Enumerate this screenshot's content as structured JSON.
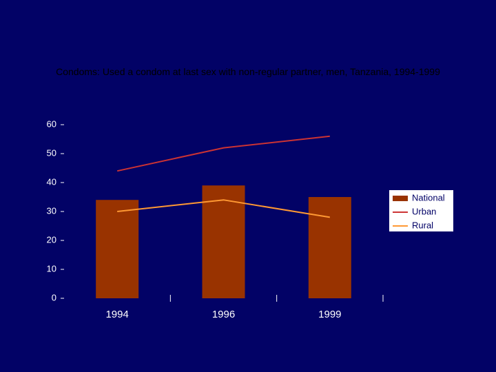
{
  "chart_data": {
    "type": "bar-line",
    "title": "Condoms: Used a condom at last sex with non-regular partner, men, Tanzania, 1994-1999",
    "categories": [
      "1994",
      "1996",
      "1999"
    ],
    "series": [
      {
        "name": "National",
        "type": "bar",
        "color": "#993300",
        "values": [
          34,
          39,
          35
        ]
      },
      {
        "name": "Urban",
        "type": "line",
        "color": "#cc3333",
        "values": [
          44,
          52,
          56
        ]
      },
      {
        "name": "Rural",
        "type": "line",
        "color": "#ff9933",
        "values": [
          30,
          34,
          28
        ]
      }
    ],
    "ylim": [
      0,
      60
    ],
    "yticks": [
      0,
      10,
      20,
      30,
      40,
      50,
      60
    ],
    "grid": false,
    "legend": "right"
  }
}
